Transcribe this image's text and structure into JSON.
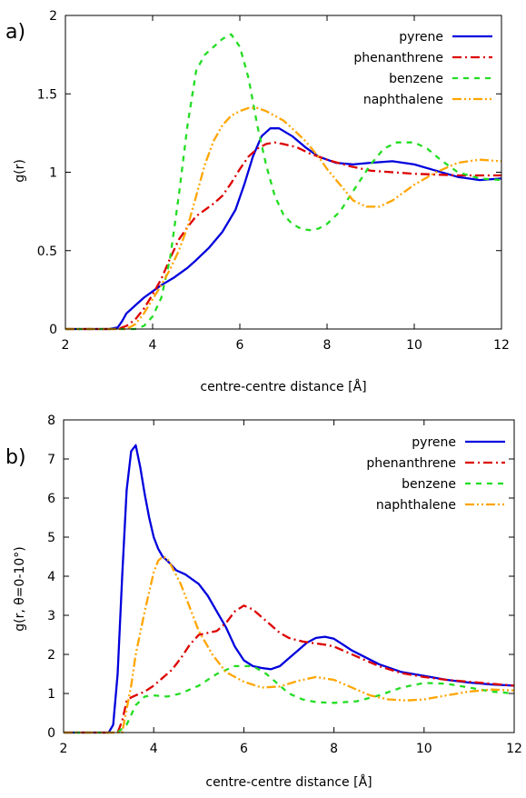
{
  "chart_data": [
    {
      "panel_label": "a)",
      "type": "line",
      "xlabel": "centre-centre distance [Å]",
      "ylabel": "g(r)",
      "xlim": [
        2,
        12
      ],
      "ylim": [
        0,
        2
      ],
      "xticks": [
        2,
        4,
        6,
        8,
        10,
        12
      ],
      "yticks": [
        0,
        0.5,
        1,
        1.5,
        2
      ],
      "ytick_labels": [
        "0",
        "0.5",
        "1",
        "1.5",
        "2"
      ],
      "grid": false,
      "legend_position": "top-right",
      "series": [
        {
          "name": "pyrene",
          "color": "#0000dd",
          "dash": "solid",
          "x": [
            2,
            3,
            3.2,
            3.3,
            3.4,
            3.6,
            3.8,
            4,
            4.2,
            4.5,
            4.8,
            5,
            5.3,
            5.6,
            5.9,
            6.1,
            6.3,
            6.5,
            6.7,
            6.9,
            7.2,
            7.5,
            7.8,
            8.2,
            8.6,
            9,
            9.5,
            10,
            10.5,
            11,
            11.5,
            12
          ],
          "y": [
            0,
            0,
            0.01,
            0.05,
            0.1,
            0.15,
            0.2,
            0.24,
            0.28,
            0.33,
            0.39,
            0.44,
            0.52,
            0.62,
            0.76,
            0.92,
            1.1,
            1.23,
            1.28,
            1.28,
            1.23,
            1.16,
            1.1,
            1.06,
            1.05,
            1.06,
            1.07,
            1.05,
            1.01,
            0.97,
            0.95,
            0.96
          ]
        },
        {
          "name": "phenanthrene",
          "color": "#dd0000",
          "dash": "dashdot",
          "x": [
            2,
            3.2,
            3.4,
            3.6,
            3.8,
            4,
            4.2,
            4.4,
            4.6,
            4.8,
            5,
            5.2,
            5.4,
            5.6,
            5.8,
            6,
            6.2,
            6.4,
            6.6,
            6.8,
            7,
            7.3,
            7.6,
            8,
            8.5,
            9,
            9.5,
            10,
            11,
            12
          ],
          "y": [
            0,
            0,
            0.02,
            0.06,
            0.13,
            0.22,
            0.32,
            0.45,
            0.57,
            0.65,
            0.72,
            0.76,
            0.8,
            0.85,
            0.93,
            1.02,
            1.1,
            1.15,
            1.18,
            1.19,
            1.18,
            1.16,
            1.12,
            1.08,
            1.04,
            1.01,
            1.0,
            0.99,
            0.98,
            0.98
          ]
        },
        {
          "name": "benzene",
          "color": "#22dd22",
          "dash": "dashed",
          "x": [
            2,
            3.6,
            3.8,
            4,
            4.2,
            4.4,
            4.6,
            4.8,
            5,
            5.2,
            5.4,
            5.6,
            5.8,
            6,
            6.2,
            6.4,
            6.6,
            6.8,
            7,
            7.2,
            7.4,
            7.6,
            7.8,
            8,
            8.3,
            8.6,
            9,
            9.3,
            9.6,
            10,
            10.3,
            10.6,
            11,
            11.5,
            12
          ],
          "y": [
            0,
            0,
            0.02,
            0.08,
            0.2,
            0.45,
            0.85,
            1.3,
            1.65,
            1.75,
            1.8,
            1.85,
            1.88,
            1.8,
            1.6,
            1.3,
            1.05,
            0.85,
            0.73,
            0.67,
            0.64,
            0.63,
            0.64,
            0.67,
            0.75,
            0.88,
            1.05,
            1.15,
            1.19,
            1.19,
            1.15,
            1.08,
            1.0,
            0.96,
            0.95
          ]
        },
        {
          "name": "naphthalene",
          "color": "#ffa500",
          "dash": "dashdotdot",
          "x": [
            2,
            3.4,
            3.6,
            3.8,
            4,
            4.2,
            4.4,
            4.6,
            4.8,
            5,
            5.2,
            5.4,
            5.6,
            5.8,
            6,
            6.2,
            6.4,
            6.6,
            6.8,
            7,
            7.2,
            7.5,
            7.8,
            8,
            8.3,
            8.6,
            8.9,
            9.2,
            9.5,
            10,
            10.5,
            11,
            11.5,
            12
          ],
          "y": [
            0,
            0,
            0.03,
            0.1,
            0.19,
            0.28,
            0.38,
            0.5,
            0.65,
            0.85,
            1.05,
            1.2,
            1.3,
            1.36,
            1.39,
            1.41,
            1.41,
            1.39,
            1.36,
            1.33,
            1.28,
            1.2,
            1.1,
            1.02,
            0.92,
            0.82,
            0.78,
            0.78,
            0.82,
            0.92,
            1.0,
            1.06,
            1.08,
            1.07
          ]
        }
      ]
    },
    {
      "panel_label": "b)",
      "type": "line",
      "xlabel": "centre-centre distance [Å]",
      "ylabel": "g(r, θ=0-10°)",
      "xlim": [
        2,
        12
      ],
      "ylim": [
        0,
        8
      ],
      "xticks": [
        2,
        4,
        6,
        8,
        10,
        12
      ],
      "yticks": [
        0,
        1,
        2,
        3,
        4,
        5,
        6,
        7,
        8
      ],
      "ytick_labels": [
        "0",
        "1",
        "2",
        "3",
        "4",
        "5",
        "6",
        "7",
        "8"
      ],
      "grid": false,
      "legend_position": "top-right",
      "series": [
        {
          "name": "pyrene",
          "color": "#0000dd",
          "dash": "solid",
          "x": [
            2,
            3,
            3.1,
            3.2,
            3.3,
            3.4,
            3.5,
            3.6,
            3.7,
            3.8,
            3.9,
            4,
            4.1,
            4.2,
            4.3,
            4.5,
            4.7,
            5,
            5.2,
            5.4,
            5.6,
            5.8,
            6,
            6.2,
            6.4,
            6.6,
            6.8,
            7,
            7.2,
            7.4,
            7.6,
            7.8,
            8,
            8.4,
            9,
            9.5,
            10,
            10.5,
            11,
            11.5,
            12
          ],
          "y": [
            0,
            0,
            0.2,
            1.5,
            4.0,
            6.2,
            7.2,
            7.35,
            6.8,
            6.1,
            5.5,
            5.0,
            4.7,
            4.5,
            4.4,
            4.15,
            4.05,
            3.8,
            3.5,
            3.1,
            2.7,
            2.2,
            1.85,
            1.7,
            1.65,
            1.62,
            1.7,
            1.9,
            2.1,
            2.3,
            2.42,
            2.45,
            2.4,
            2.1,
            1.75,
            1.55,
            1.45,
            1.35,
            1.28,
            1.23,
            1.2
          ]
        },
        {
          "name": "phenanthrene",
          "color": "#dd0000",
          "dash": "dashdot",
          "x": [
            2,
            3.2,
            3.3,
            3.4,
            3.5,
            3.6,
            3.8,
            4,
            4.2,
            4.4,
            4.6,
            4.8,
            5,
            5.2,
            5.4,
            5.6,
            5.8,
            6,
            6.2,
            6.4,
            6.6,
            6.8,
            7,
            7.3,
            7.6,
            7.8,
            8,
            8.4,
            9,
            9.5,
            10,
            10.5,
            11,
            11.5,
            12
          ],
          "y": [
            0,
            0,
            0.3,
            0.8,
            0.9,
            0.95,
            1.05,
            1.2,
            1.4,
            1.6,
            1.9,
            2.25,
            2.5,
            2.55,
            2.6,
            2.8,
            3.1,
            3.25,
            3.15,
            2.95,
            2.75,
            2.55,
            2.42,
            2.33,
            2.28,
            2.25,
            2.2,
            2.0,
            1.7,
            1.52,
            1.42,
            1.35,
            1.3,
            1.25,
            1.2
          ]
        },
        {
          "name": "benzene",
          "color": "#22dd22",
          "dash": "dashed",
          "x": [
            2,
            3.2,
            3.4,
            3.6,
            3.8,
            4,
            4.3,
            4.6,
            5,
            5.4,
            5.8,
            6.2,
            6.5,
            6.8,
            7,
            7.3,
            7.6,
            8,
            8.5,
            9,
            9.5,
            10,
            10.5,
            11,
            11.5,
            12
          ],
          "y": [
            0,
            0,
            0.2,
            0.7,
            0.92,
            0.95,
            0.92,
            1.0,
            1.2,
            1.5,
            1.7,
            1.7,
            1.5,
            1.2,
            1.0,
            0.85,
            0.78,
            0.76,
            0.8,
            0.95,
            1.15,
            1.27,
            1.25,
            1.15,
            1.05,
            1.0
          ]
        },
        {
          "name": "naphthalene",
          "color": "#ffa500",
          "dash": "dashdotdot",
          "x": [
            2,
            3.3,
            3.4,
            3.5,
            3.6,
            3.8,
            4,
            4.1,
            4.2,
            4.3,
            4.4,
            4.6,
            4.8,
            5,
            5.3,
            5.6,
            6,
            6.4,
            6.8,
            7.2,
            7.6,
            8,
            8.4,
            8.8,
            9.2,
            9.6,
            10,
            10.5,
            11,
            11.5,
            12
          ],
          "y": [
            0,
            0,
            0.6,
            1.2,
            2.0,
            3.1,
            4.1,
            4.4,
            4.5,
            4.45,
            4.25,
            3.8,
            3.2,
            2.6,
            2.0,
            1.55,
            1.3,
            1.15,
            1.18,
            1.32,
            1.42,
            1.35,
            1.15,
            0.95,
            0.85,
            0.82,
            0.85,
            0.95,
            1.05,
            1.1,
            1.08
          ]
        }
      ]
    }
  ]
}
